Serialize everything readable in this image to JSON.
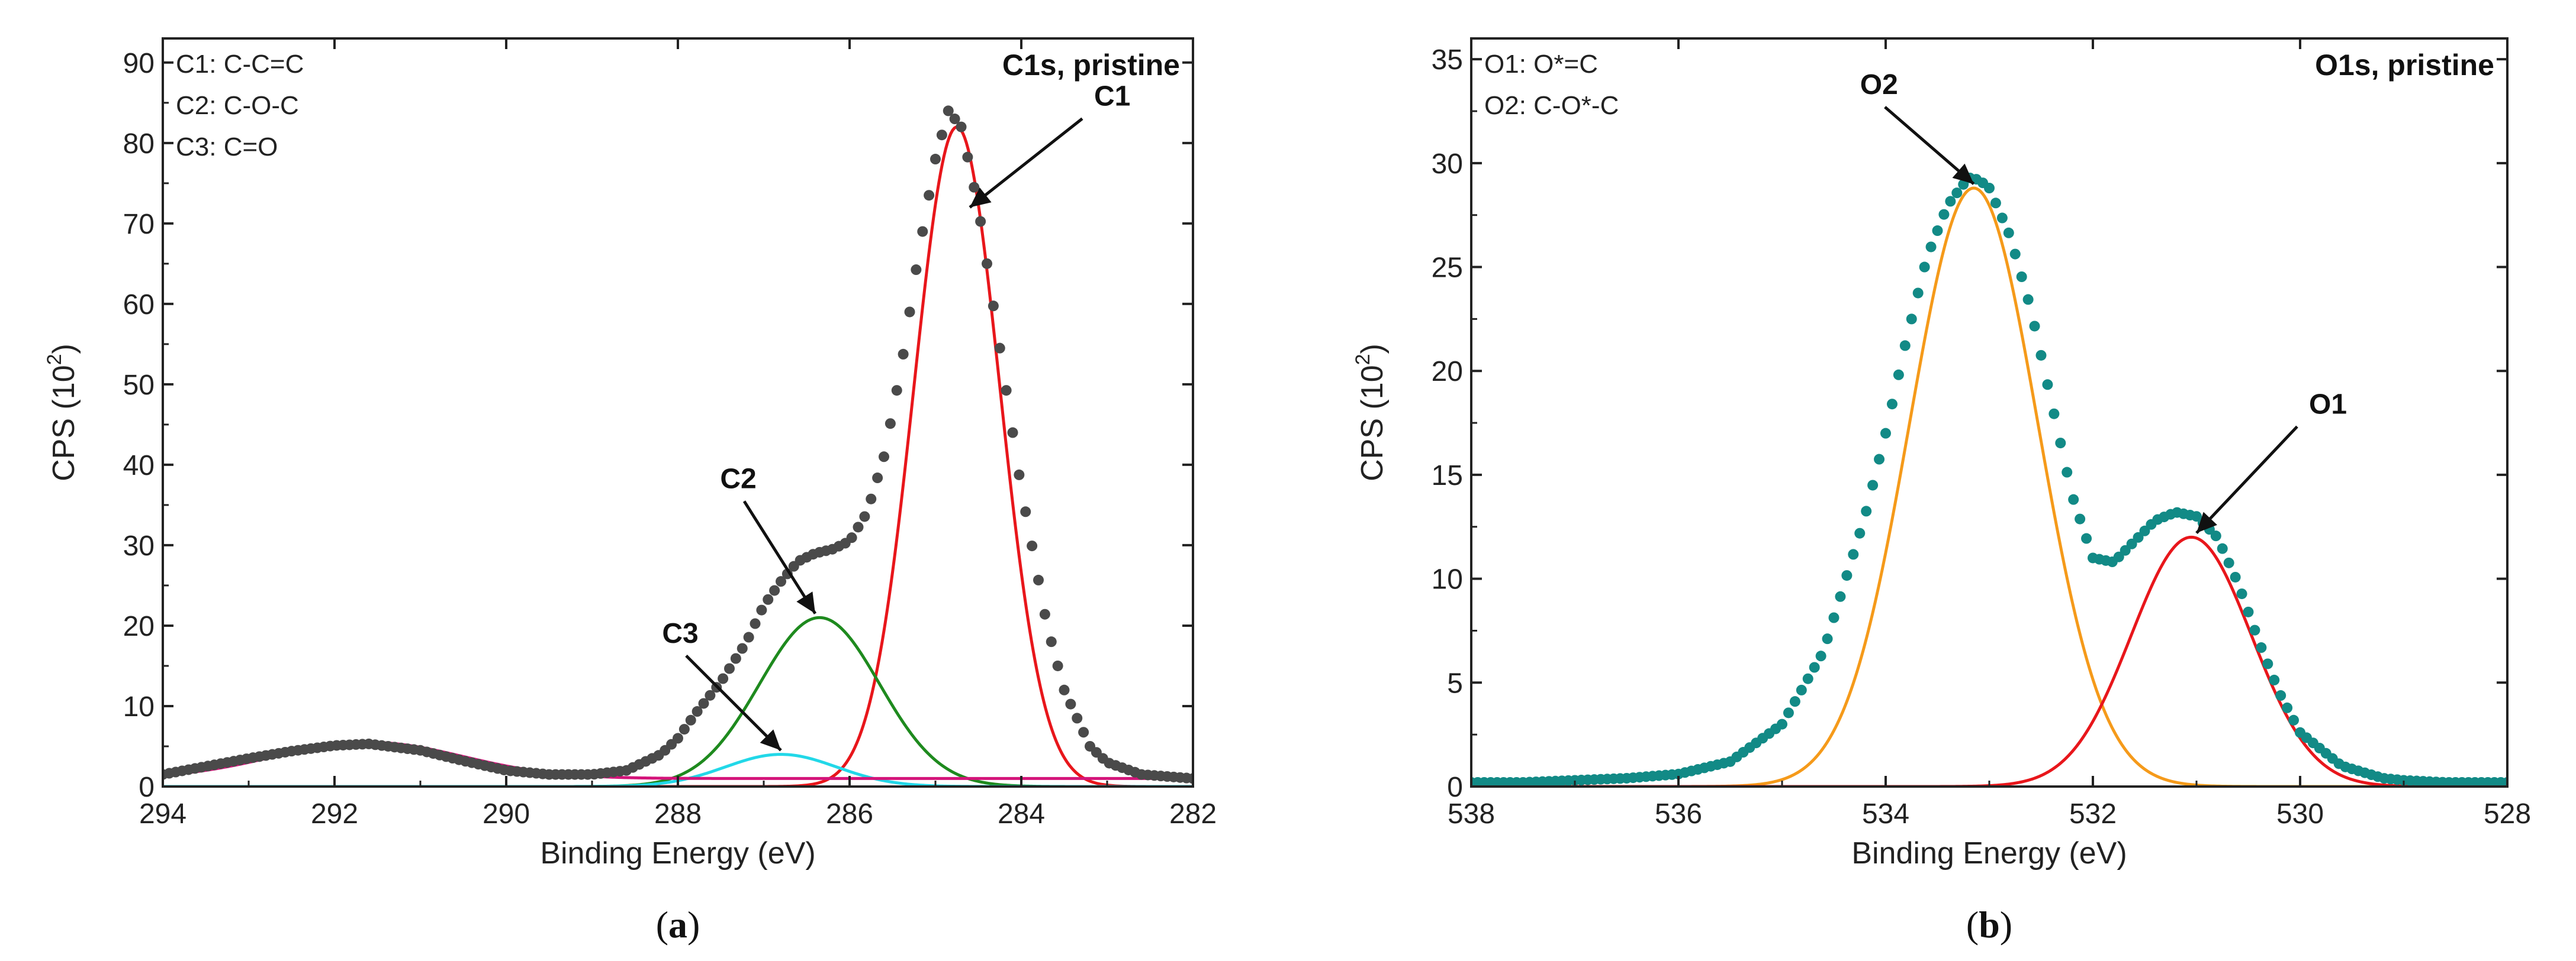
{
  "chart_data": [
    {
      "type": "line",
      "panel": "a",
      "caption_letter": "a",
      "title": "C1s, pristine",
      "xlabel": "Binding Energy (eV)",
      "ylabel": "CPS (10",
      "ylabel_sup": "2",
      "ylabel_close": ")",
      "xlim": [
        294,
        282
      ],
      "ylim": [
        0,
        93
      ],
      "xticks": [
        "294",
        "292",
        "290",
        "288",
        "286",
        "284",
        "282"
      ],
      "xtick_values": [
        294,
        292,
        290,
        288,
        286,
        284,
        282
      ],
      "yticks": [
        "0",
        "10",
        "20",
        "30",
        "40",
        "50",
        "60",
        "70",
        "80",
        "90"
      ],
      "ytick_values": [
        0,
        10,
        20,
        30,
        40,
        50,
        60,
        70,
        80,
        90
      ],
      "legend": [
        "C1: C-C=C",
        "C2: C-O-C",
        "C3: C=O"
      ],
      "experimental": {
        "name": "data",
        "color": "#4a4a4a",
        "x": [
          294,
          293.5,
          293,
          292.5,
          292,
          291.6,
          291,
          290.5,
          290,
          289.5,
          289,
          288.6,
          288.2,
          288,
          287.8,
          287.5,
          287.2,
          287,
          286.8,
          286.6,
          286.4,
          286.2,
          286,
          285.8,
          285.6,
          285.4,
          285.2,
          285,
          284.85,
          284.7,
          284.5,
          284.3,
          284,
          283.7,
          283.5,
          283.2,
          283,
          282.6,
          282
        ],
        "y": [
          1.5,
          2.5,
          3.5,
          4.4,
          5.1,
          5.3,
          4.5,
          3.2,
          2.0,
          1.5,
          1.5,
          2.0,
          4.0,
          6.0,
          9.0,
          13.0,
          18.0,
          22.5,
          25.5,
          28.0,
          29.0,
          29.5,
          30.5,
          34.0,
          41.0,
          52.0,
          66.0,
          78.0,
          84.0,
          82.0,
          72.0,
          58.0,
          37.0,
          20.0,
          12.0,
          5.0,
          3.0,
          1.5,
          1.0
        ]
      },
      "components": [
        {
          "name": "C1",
          "color": "#e8161b",
          "center": 284.75,
          "height": 82.0,
          "sigma": 0.5
        },
        {
          "name": "C2",
          "color": "#1e8a1e",
          "center": 286.35,
          "height": 21.0,
          "sigma": 0.7
        },
        {
          "name": "C3",
          "color": "#22d8e8",
          "center": 286.8,
          "height": 4.0,
          "sigma": 0.65
        },
        {
          "name": "satellite",
          "color": "#d4147a",
          "center": 291.6,
          "height": 4.5,
          "sigma": 1.1,
          "baseline": 1.0
        }
      ],
      "annotations": [
        {
          "label": "C1",
          "at": [
            284.6,
            72.0
          ]
        },
        {
          "label": "C2",
          "at": [
            286.4,
            21.5
          ]
        },
        {
          "label": "C3",
          "at": [
            286.8,
            4.5
          ]
        }
      ]
    },
    {
      "type": "line",
      "panel": "b",
      "caption_letter": "b",
      "title": "O1s, pristine",
      "xlabel": "Binding Energy (eV)",
      "ylabel": "CPS (10",
      "ylabel_sup": "2",
      "ylabel_close": ")",
      "xlim": [
        538,
        528
      ],
      "ylim": [
        0,
        36
      ],
      "xticks": [
        "538",
        "536",
        "534",
        "532",
        "530",
        "528"
      ],
      "xtick_values": [
        538,
        536,
        534,
        532,
        530,
        528
      ],
      "yticks": [
        "0",
        "5",
        "10",
        "15",
        "20",
        "25",
        "30",
        "35"
      ],
      "ytick_values": [
        0,
        5,
        10,
        15,
        20,
        25,
        30,
        35
      ],
      "legend": [
        "O1: O*=C",
        "O2: C-O*-C"
      ],
      "experimental": {
        "name": "data",
        "color": "#128a86",
        "x": [
          538,
          537.5,
          537,
          536.5,
          536,
          535.5,
          535,
          534.6,
          534.2,
          534,
          533.8,
          533.6,
          533.4,
          533.2,
          533.1,
          533,
          532.8,
          532.6,
          532.4,
          532.2,
          532,
          531.8,
          531.6,
          531.4,
          531.2,
          531,
          530.8,
          530.6,
          530.4,
          530.2,
          530,
          529.6,
          529.2,
          529,
          528.6,
          528
        ],
        "y": [
          0.2,
          0.2,
          0.3,
          0.4,
          0.6,
          1.2,
          3.0,
          6.5,
          13.0,
          17.0,
          21.5,
          25.5,
          28.0,
          29.3,
          29.2,
          28.8,
          26.5,
          23.0,
          18.5,
          14.0,
          11.0,
          10.8,
          11.8,
          12.8,
          13.2,
          13.0,
          12.0,
          9.8,
          7.0,
          4.5,
          2.6,
          1.0,
          0.4,
          0.3,
          0.2,
          0.2
        ]
      },
      "components": [
        {
          "name": "O2",
          "color": "#f59a1a",
          "center": 533.15,
          "height": 28.8,
          "sigma": 0.62
        },
        {
          "name": "O1",
          "color": "#e8161b",
          "center": 531.05,
          "height": 12.0,
          "sigma": 0.58
        }
      ],
      "annotations": [
        {
          "label": "O2",
          "at": [
            533.15,
            29.0
          ]
        },
        {
          "label": "O1",
          "at": [
            531.0,
            12.2
          ]
        }
      ]
    }
  ]
}
